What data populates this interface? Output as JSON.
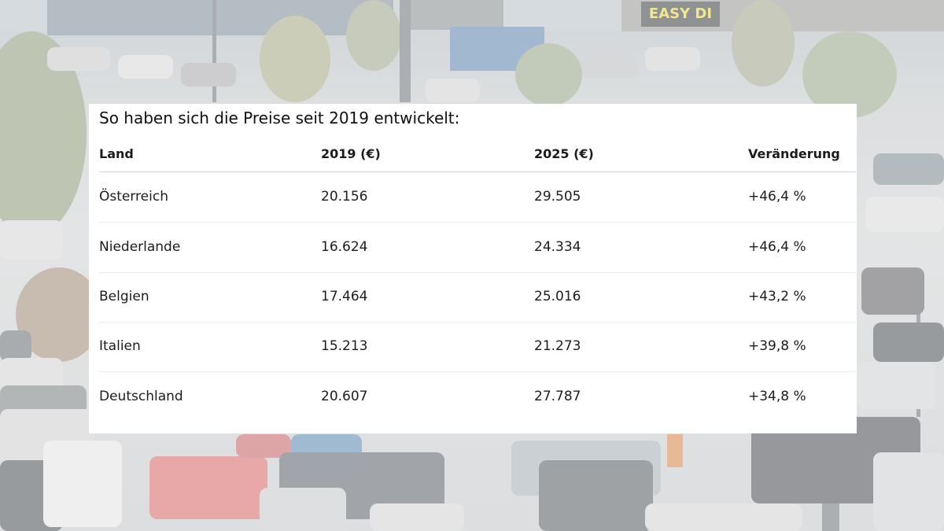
{
  "chart_data": {
    "type": "table",
    "title": "So haben sich die Preise seit 2019 entwickelt:",
    "columns": [
      "Land",
      "2019 (€)",
      "2025 (€)",
      "Veränderung"
    ],
    "rows": [
      {
        "land": "Österreich",
        "y2019": "20.156",
        "y2025": "29.505",
        "change": "+46,4 %"
      },
      {
        "land": "Niederlande",
        "y2019": "16.624",
        "y2025": "24.334",
        "change": "+46,4 %"
      },
      {
        "land": "Belgien",
        "y2019": "17.464",
        "y2025": "25.016",
        "change": "+43,2 %"
      },
      {
        "land": "Italien",
        "y2019": "15.213",
        "y2025": "21.273",
        "change": "+39,8 %"
      },
      {
        "land": "Deutschland",
        "y2019": "20.607",
        "y2025": "27.787",
        "change": "+34,8 %"
      }
    ]
  },
  "background": {
    "sign_text": "EASY DI"
  }
}
